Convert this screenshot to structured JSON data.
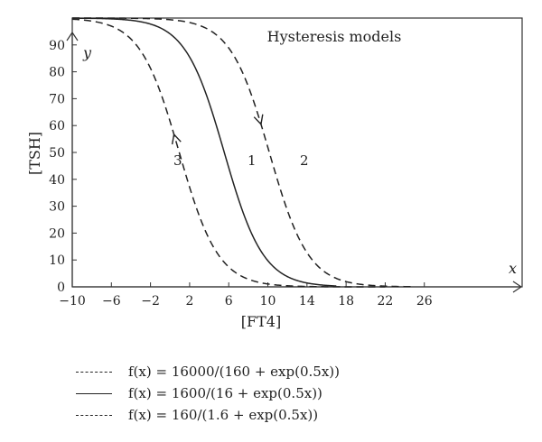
{
  "chart_data": {
    "type": "line",
    "title": "Hysteresis models",
    "xlabel": "[FT4]",
    "ylabel": "[TSH]",
    "x_var": "x",
    "y_var": "y",
    "xlim": [
      -10,
      36
    ],
    "ylim": [
      0,
      100
    ],
    "x_ticks": [
      -10,
      -6,
      -2,
      2,
      6,
      10,
      14,
      18,
      22,
      26
    ],
    "y_ticks": [
      0,
      10,
      20,
      30,
      40,
      50,
      60,
      70,
      80,
      90
    ],
    "grid": false,
    "legend_position": "bottom",
    "series": [
      {
        "label": "2",
        "style": "dashed",
        "numerator": 16000,
        "denominator_constant": 160,
        "exponent_coefficient": 0.5,
        "x_range": [
          -10,
          25
        ],
        "arrow_direction": "down",
        "arrow_at_x": 9.3
      },
      {
        "label": "1",
        "style": "solid",
        "numerator": 1600,
        "denominator_constant": 16,
        "exponent_coefficient": 0.5,
        "x_range": [
          -10,
          17
        ],
        "arrow_direction": "none"
      },
      {
        "label": "3",
        "style": "dashed",
        "numerator": 160,
        "denominator_constant": 1.6,
        "exponent_coefficient": 0.5,
        "x_range": [
          -10,
          22
        ],
        "arrow_direction": "up",
        "arrow_at_x": 0.4
      }
    ],
    "legend": [
      {
        "style": "dashed",
        "text": "f(x) = 16000/(160 + exp(0.5x))"
      },
      {
        "style": "solid",
        "text": "f(x) = 1600/(16 + exp(0.5x))"
      },
      {
        "style": "dashed",
        "text": "f(x) = 160/(1.6 + exp(0.5x))"
      }
    ]
  }
}
